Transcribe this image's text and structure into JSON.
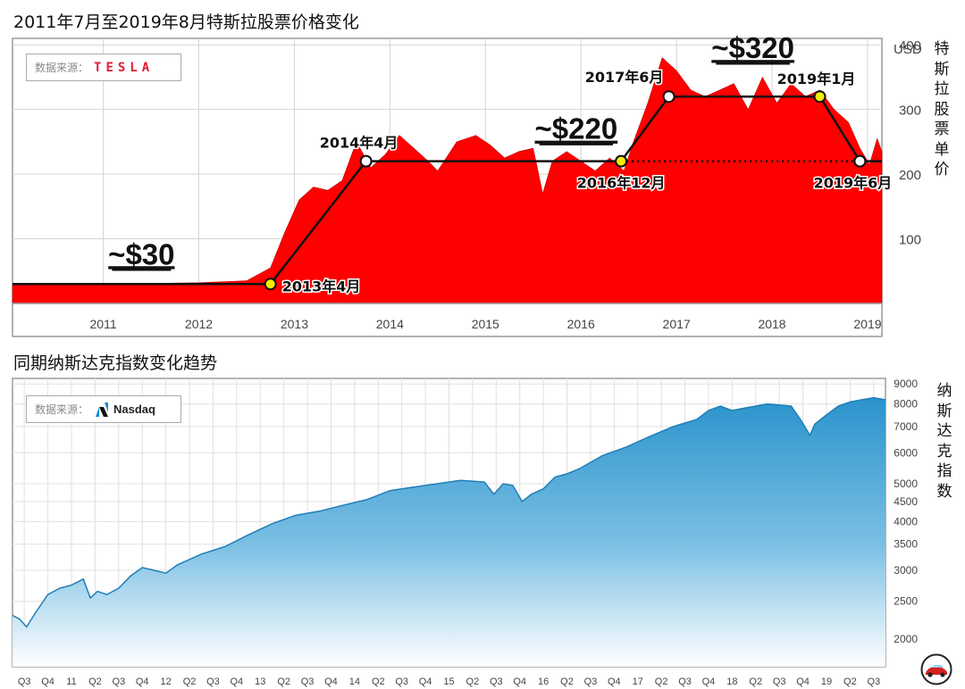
{
  "titles": {
    "tesla": "2011年7月至2019年8月特斯拉股票价格变化",
    "nasdaq": "同期纳斯达克指数变化趋势"
  },
  "source": {
    "label": "数据来源：",
    "tesla_logo": "TESLA",
    "nasdaq_logo": "Nasdaq"
  },
  "colors": {
    "tesla_fill": "#ff0000",
    "nasdaq_top": "#2b93cc",
    "nasdaq_bottom": "#ffffff",
    "grid": "#cccccc",
    "callout_yellow": "#f7ee00",
    "logo_red": "#e31937"
  },
  "icons": [
    "tesla-logo-icon",
    "nasdaq-logo-icon",
    "car-icon"
  ],
  "chart_data": [
    {
      "type": "area",
      "title": "2011年7月至2019年8月特斯拉股票价格变化",
      "ylabel": "特斯拉股票单价",
      "yunit": "USD",
      "ylim": [
        0,
        410
      ],
      "yticks": [
        100,
        200,
        300,
        400
      ],
      "x_range": [
        2010.55,
        2019.65
      ],
      "xticks": [
        "2011",
        "2012",
        "2013",
        "2014",
        "2015",
        "2016",
        "2017",
        "2018",
        "2019"
      ],
      "grid": true,
      "series": [
        {
          "x": [
            2010.55,
            2011.0,
            2011.5,
            2012.0,
            2012.5,
            2013.0,
            2013.25,
            2013.4,
            2013.55,
            2013.7,
            2013.85,
            2014.0,
            2014.15,
            2014.3,
            2014.45,
            2014.6,
            2014.75,
            2014.9,
            2015.0,
            2015.2,
            2015.4,
            2015.55,
            2015.7,
            2015.85,
            2016.0,
            2016.1,
            2016.2,
            2016.35,
            2016.5,
            2016.65,
            2016.8,
            2016.95,
            2017.05,
            2017.2,
            2017.35,
            2017.5,
            2017.65,
            2017.8,
            2017.95,
            2018.1,
            2018.25,
            2018.4,
            2018.55,
            2018.7,
            2018.85,
            2019.0,
            2019.15,
            2019.3,
            2019.42,
            2019.52,
            2019.6,
            2019.65
          ],
          "values": [
            28,
            29,
            30,
            31,
            32,
            35,
            55,
            110,
            160,
            180,
            175,
            190,
            250,
            210,
            230,
            260,
            240,
            220,
            205,
            250,
            260,
            245,
            225,
            235,
            240,
            170,
            220,
            235,
            220,
            205,
            225,
            205,
            250,
            310,
            380,
            360,
            330,
            320,
            330,
            340,
            300,
            350,
            310,
            340,
            320,
            330,
            300,
            280,
            240,
            215,
            255,
            235
          ]
        }
      ],
      "annotations": [
        {
          "label": "~$30",
          "x": 2011.9,
          "y": 30
        },
        {
          "label": "~$220",
          "x": 2016.45,
          "y": 220
        },
        {
          "label": "~$320",
          "x": 2018.3,
          "y": 320
        },
        {
          "label": "2013年4月",
          "x": 2013.25,
          "y": 30
        },
        {
          "label": "2014年4月",
          "x": 2014.25,
          "y": 220
        },
        {
          "label": "2016年12月",
          "x": 2016.92,
          "y": 220
        },
        {
          "label": "2017年6月",
          "x": 2017.42,
          "y": 320
        },
        {
          "label": "2019年1月",
          "x": 2019.0,
          "y": 320
        },
        {
          "label": "2019年6月",
          "x": 2019.42,
          "y": 220
        }
      ],
      "trend_line": [
        [
          2010.55,
          30
        ],
        [
          2013.25,
          30
        ],
        [
          2014.25,
          220
        ],
        [
          2016.92,
          220
        ],
        [
          2017.42,
          320
        ],
        [
          2019.0,
          320
        ],
        [
          2019.42,
          220
        ],
        [
          2019.65,
          220
        ]
      ],
      "dotted_line": [
        [
          2016.92,
          220
        ],
        [
          2019.42,
          220
        ]
      ],
      "trend_points": [
        {
          "x": 2013.25,
          "y": 30,
          "fill": "yellow"
        },
        {
          "x": 2014.25,
          "y": 220,
          "fill": "white"
        },
        {
          "x": 2016.92,
          "y": 220,
          "fill": "yellow"
        },
        {
          "x": 2017.42,
          "y": 320,
          "fill": "white"
        },
        {
          "x": 2019.0,
          "y": 320,
          "fill": "yellow"
        },
        {
          "x": 2019.42,
          "y": 220,
          "fill": "white"
        }
      ]
    },
    {
      "type": "area",
      "title": "同期纳斯达克指数变化趋势",
      "ylabel": "纳斯达克指数",
      "yscale": "log",
      "ylim": [
        1700,
        9300
      ],
      "yticks": [
        2000,
        2500,
        3000,
        3500,
        4000,
        4500,
        5000,
        6000,
        7000,
        8000,
        9000
      ],
      "xticks": [
        "Q3",
        "Q4",
        "11",
        "Q2",
        "Q3",
        "Q4",
        "12",
        "Q2",
        "Q3",
        "Q4",
        "13",
        "Q2",
        "Q3",
        "Q4",
        "14",
        "Q2",
        "Q3",
        "Q4",
        "15",
        "Q2",
        "Q3",
        "Q4",
        "16",
        "Q2",
        "Q3",
        "Q4",
        "17",
        "Q2",
        "Q3",
        "Q4",
        "18",
        "Q2",
        "Q3",
        "Q4",
        "19",
        "Q2",
        "Q3"
      ],
      "grid": true,
      "series": [
        {
          "x": [
            0,
            0.3,
            0.6,
            1.0,
            1.5,
            2.0,
            2.5,
            3.0,
            3.3,
            3.6,
            4.0,
            4.5,
            5.0,
            5.5,
            6.0,
            6.5,
            7.0,
            8.0,
            9.0,
            10.0,
            11.0,
            12.0,
            13.0,
            14.0,
            15.0,
            16.0,
            17.0,
            18.0,
            19.0,
            20.0,
            20.4,
            20.8,
            21.2,
            21.6,
            22.0,
            22.5,
            23.0,
            23.5,
            24.0,
            25.0,
            26.0,
            27.0,
            28.0,
            29.0,
            29.5,
            30.0,
            30.5,
            31.0,
            32.0,
            33.0,
            33.4,
            33.8,
            34.0,
            34.5,
            35.0,
            35.5,
            36.0,
            36.5,
            37.0
          ],
          "values": [
            2300,
            2250,
            2150,
            2350,
            2600,
            2700,
            2750,
            2850,
            2550,
            2650,
            2600,
            2700,
            2900,
            3050,
            3000,
            2950,
            3100,
            3300,
            3450,
            3700,
            3950,
            4150,
            4250,
            4400,
            4550,
            4800,
            4900,
            5000,
            5100,
            5050,
            4700,
            5000,
            4950,
            4500,
            4700,
            4850,
            5200,
            5300,
            5450,
            5900,
            6200,
            6600,
            7000,
            7300,
            7700,
            7900,
            7700,
            7800,
            8000,
            7900,
            7300,
            6650,
            7100,
            7500,
            7900,
            8100,
            8200,
            8300,
            8200
          ]
        }
      ]
    }
  ]
}
